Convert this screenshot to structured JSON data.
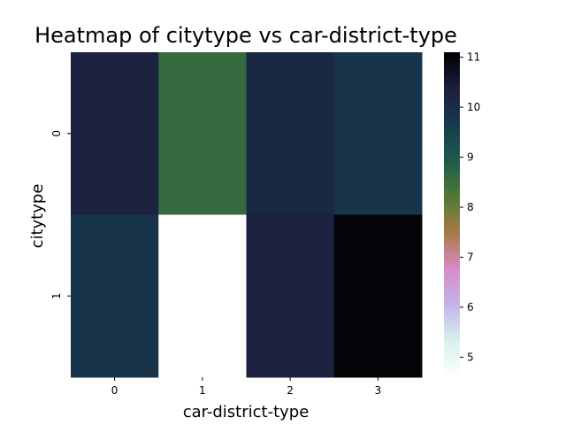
{
  "chart_data": {
    "type": "heatmap",
    "title": "Heatmap of citytype vs car-district-type",
    "xlabel": "car-district-type",
    "ylabel": "citytype",
    "x_categories": [
      "0",
      "1",
      "2",
      "3"
    ],
    "y_categories": [
      "0",
      "1"
    ],
    "values": [
      [
        10.3,
        8.6,
        10.1,
        9.8
      ],
      [
        9.8,
        4.6,
        10.3,
        11.0
      ]
    ],
    "colorbar": {
      "min": 4.6,
      "max": 11.1,
      "ticks": [
        5,
        6,
        7,
        8,
        9,
        10,
        11
      ],
      "colormap": "cubehelix_r",
      "stops": [
        "#ffffff",
        "#d8f0ec",
        "#c4b4ec",
        "#d98bc4",
        "#a87a4a",
        "#4e7a32",
        "#1f5a4a",
        "#173a4e",
        "#1b1e3c",
        "#000000"
      ]
    },
    "grid": false
  }
}
